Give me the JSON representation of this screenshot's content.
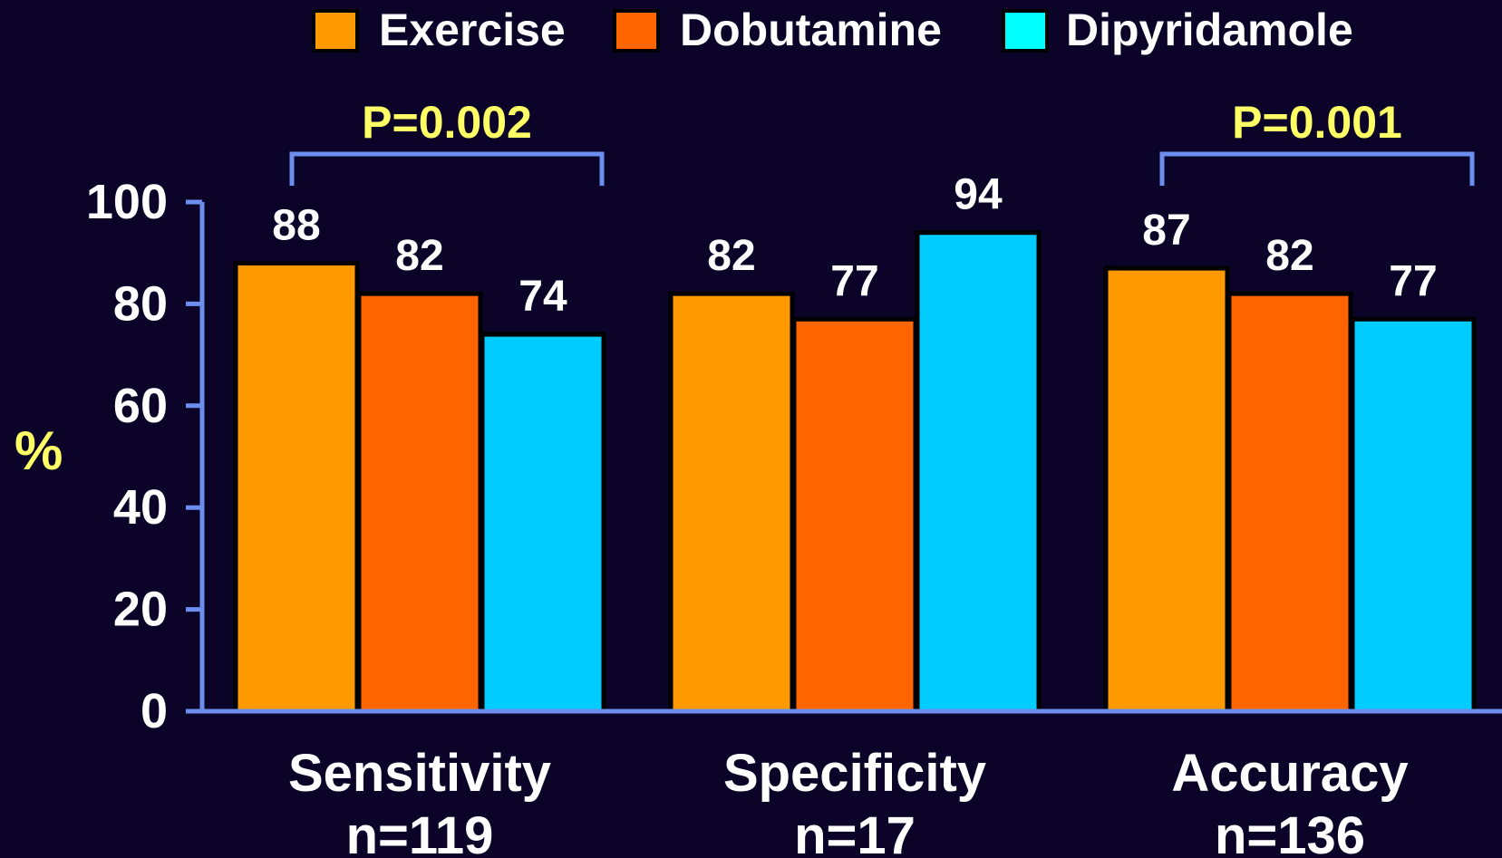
{
  "chart_data": {
    "type": "bar",
    "categories": [
      "Sensitivity",
      "Specificity",
      "Accuracy"
    ],
    "category_sublabels": [
      "n=119",
      "n=17",
      "n=136"
    ],
    "series": [
      {
        "name": "Exercise",
        "values": [
          88,
          82,
          87
        ],
        "color": "#ff9900"
      },
      {
        "name": "Dobutamine",
        "values": [
          82,
          77,
          82
        ],
        "color": "#ff6600"
      },
      {
        "name": "Dipyridamole",
        "values": [
          74,
          94,
          77
        ],
        "color": "#00ccff"
      }
    ],
    "data_labels": [
      [
        "88",
        "82",
        "87"
      ],
      [
        "82",
        "77",
        "82"
      ],
      [
        "74",
        "94",
        "77"
      ]
    ],
    "ylabel": "%",
    "ylim": [
      0,
      100
    ],
    "yticks": [
      0,
      20,
      40,
      60,
      80,
      100
    ],
    "ytick_labels": [
      "0",
      "20",
      "40",
      "60",
      "80",
      "100"
    ],
    "legend_position": "top",
    "legend_swatch_colors": [
      "#ff9900",
      "#ff6600",
      "#00ffff"
    ],
    "annotations": [
      {
        "text": "P=0.002",
        "category_index": 0,
        "from_series": 0,
        "to_series": 2
      },
      {
        "text": "P=0.001",
        "category_index": 2,
        "from_series": 0,
        "to_series": 2
      }
    ],
    "colors": {
      "background": "#0b0428",
      "axis": "#6c8fef",
      "label_text": "#ffffff",
      "annotation_text": "#ffff66",
      "bar_border": "#000000"
    }
  }
}
